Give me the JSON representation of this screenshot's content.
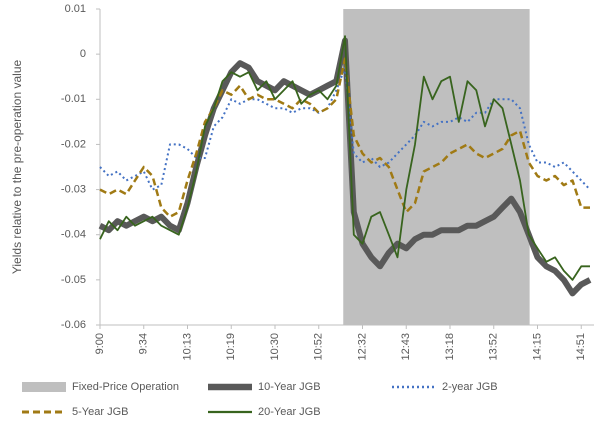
{
  "chart_data": {
    "type": "line",
    "y_label": "Yields relative to the pre-operation value",
    "ylim": [
      -0.06,
      0.01
    ],
    "yticks": [
      0.01,
      0,
      -0.01,
      -0.02,
      -0.03,
      -0.04,
      -0.05,
      -0.06
    ],
    "categories": [
      "9:00",
      null,
      null,
      null,
      null,
      "9:34",
      null,
      null,
      null,
      null,
      "10:13",
      null,
      null,
      null,
      null,
      "10:19",
      null,
      null,
      null,
      null,
      "10:30",
      null,
      null,
      null,
      null,
      "10:52",
      null,
      null,
      null,
      null,
      "12:32",
      null,
      null,
      null,
      null,
      "12:43",
      null,
      null,
      null,
      null,
      "13:18",
      null,
      null,
      null,
      null,
      "13:52",
      null,
      null,
      null,
      null,
      "14:15",
      null,
      null,
      null,
      null,
      "14:51",
      null
    ],
    "band": {
      "name": "Fixed-Price Operation",
      "color": "#bfbfbf",
      "from": 27.8,
      "to": 49.1
    },
    "series": [
      {
        "name": "10-Year JGB",
        "color": "#595959",
        "width": 6,
        "dash": "solid",
        "values": [
          -0.038,
          -0.039,
          -0.037,
          -0.038,
          -0.037,
          -0.036,
          -0.037,
          -0.036,
          -0.038,
          -0.039,
          -0.033,
          -0.025,
          -0.018,
          -0.012,
          -0.008,
          -0.004,
          -0.002,
          -0.003,
          -0.006,
          -0.007,
          -0.008,
          -0.006,
          -0.007,
          -0.008,
          -0.009,
          -0.008,
          -0.007,
          -0.006,
          0.003,
          -0.035,
          -0.042,
          -0.045,
          -0.047,
          -0.044,
          -0.042,
          -0.043,
          -0.041,
          -0.04,
          -0.04,
          -0.039,
          -0.039,
          -0.039,
          -0.038,
          -0.038,
          -0.037,
          -0.036,
          -0.034,
          -0.032,
          -0.035,
          -0.04,
          -0.045,
          -0.047,
          -0.048,
          -0.05,
          -0.053,
          -0.051,
          -0.05
        ]
      },
      {
        "name": "2-year JGB",
        "color": "#4472c4",
        "width": 2,
        "dash": "dotted",
        "values": [
          -0.025,
          -0.027,
          -0.026,
          -0.028,
          -0.027,
          -0.026,
          -0.03,
          -0.029,
          -0.02,
          -0.02,
          -0.021,
          -0.023,
          -0.023,
          -0.016,
          -0.014,
          -0.01,
          -0.011,
          -0.01,
          -0.01,
          -0.011,
          -0.012,
          -0.012,
          -0.013,
          -0.012,
          -0.012,
          -0.013,
          -0.012,
          -0.008,
          -0.003,
          -0.022,
          -0.024,
          -0.023,
          -0.025,
          -0.024,
          -0.022,
          -0.02,
          -0.018,
          -0.015,
          -0.016,
          -0.015,
          -0.015,
          -0.014,
          -0.015,
          -0.013,
          -0.013,
          -0.01,
          -0.01,
          -0.01,
          -0.012,
          -0.02,
          -0.024,
          -0.024,
          -0.025,
          -0.024,
          -0.026,
          -0.028,
          -0.03
        ]
      },
      {
        "name": "5-Year JGB",
        "color": "#a07a14",
        "width": 2.5,
        "dash": "dashed",
        "values": [
          -0.03,
          -0.031,
          -0.03,
          -0.031,
          -0.028,
          -0.025,
          -0.027,
          -0.034,
          -0.036,
          -0.035,
          -0.028,
          -0.022,
          -0.015,
          -0.012,
          -0.008,
          -0.009,
          -0.007,
          -0.01,
          -0.009,
          -0.01,
          -0.01,
          -0.011,
          -0.012,
          -0.01,
          -0.011,
          -0.013,
          -0.012,
          -0.01,
          -0.001,
          -0.018,
          -0.022,
          -0.024,
          -0.023,
          -0.025,
          -0.03,
          -0.035,
          -0.033,
          -0.026,
          -0.025,
          -0.024,
          -0.022,
          -0.021,
          -0.02,
          -0.022,
          -0.023,
          -0.022,
          -0.021,
          -0.018,
          -0.017,
          -0.024,
          -0.027,
          -0.028,
          -0.027,
          -0.029,
          -0.028,
          -0.034,
          -0.034
        ]
      },
      {
        "name": "20-Year JGB",
        "color": "#38641e",
        "width": 1.8,
        "dash": "solid",
        "values": [
          -0.041,
          -0.037,
          -0.039,
          -0.036,
          -0.038,
          -0.037,
          -0.036,
          -0.038,
          -0.039,
          -0.04,
          -0.034,
          -0.026,
          -0.016,
          -0.012,
          -0.006,
          -0.004,
          -0.005,
          -0.004,
          -0.008,
          -0.006,
          -0.01,
          -0.008,
          -0.006,
          -0.011,
          -0.009,
          -0.008,
          -0.01,
          -0.007,
          0.004,
          -0.04,
          -0.042,
          -0.036,
          -0.035,
          -0.04,
          -0.045,
          -0.03,
          -0.02,
          -0.005,
          -0.01,
          -0.006,
          -0.005,
          -0.015,
          -0.006,
          -0.008,
          -0.016,
          -0.01,
          -0.012,
          -0.02,
          -0.028,
          -0.04,
          -0.043,
          -0.046,
          -0.045,
          -0.048,
          -0.05,
          -0.047,
          -0.047
        ]
      }
    ]
  }
}
